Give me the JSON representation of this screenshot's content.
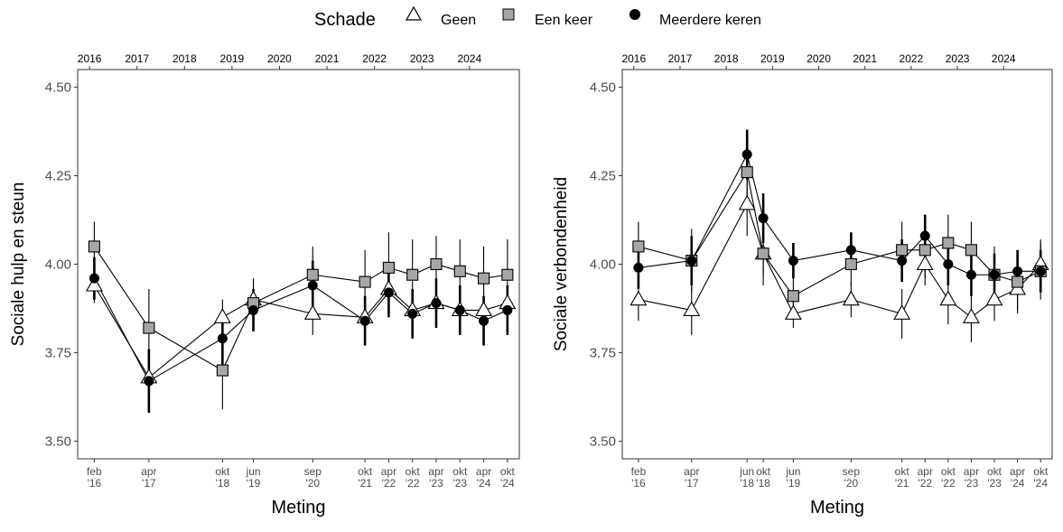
{
  "legend": {
    "title": "Schade",
    "entries": [
      {
        "label": "Geen",
        "marker": "triangle"
      },
      {
        "label": "Een keer",
        "marker": "square"
      },
      {
        "label": "Meerdere keren",
        "marker": "circle"
      }
    ]
  },
  "colors": {
    "geen_fill": "#ffffff",
    "een_keer_fill": "#a6a6a6",
    "meerdere_fill": "#000000",
    "line": "#000000",
    "axis_text": "#4d4d4d"
  },
  "chart_data": [
    {
      "type": "line",
      "xlabel": "Meting",
      "ylabel": "Sociale hulp en steun",
      "ylim": [
        3.45,
        4.55
      ],
      "yticks": [
        "3.50",
        "3.75",
        "4.00",
        "4.25",
        "4.50"
      ],
      "xlim": [
        2015.75,
        2025.05
      ],
      "top_axis_years": [
        "2016",
        "2017",
        "2018",
        "2019",
        "2020",
        "2021",
        "2022",
        "2023",
        "2024"
      ],
      "bottom_ticks": [
        {
          "x": 2016.1,
          "label": [
            "feb",
            "'16"
          ]
        },
        {
          "x": 2017.25,
          "label": [
            "apr",
            "'17"
          ]
        },
        {
          "x": 2018.8,
          "label": [
            "okt",
            "'18"
          ]
        },
        {
          "x": 2019.45,
          "label": [
            "jun",
            "'19"
          ]
        },
        {
          "x": 2020.7,
          "label": [
            "sep",
            "'20"
          ]
        },
        {
          "x": 2021.8,
          "label": [
            "okt",
            "'21"
          ]
        },
        {
          "x": 2022.3,
          "label": [
            "apr",
            "'22"
          ]
        },
        {
          "x": 2022.8,
          "label": [
            "okt",
            "'22"
          ]
        },
        {
          "x": 2023.3,
          "label": [
            "apr",
            "'23"
          ]
        },
        {
          "x": 2023.8,
          "label": [
            "okt",
            "'23"
          ]
        },
        {
          "x": 2024.3,
          "label": [
            "apr",
            "'24"
          ]
        },
        {
          "x": 2024.8,
          "label": [
            "okt",
            "'24"
          ]
        }
      ],
      "series": [
        {
          "name": "Geen",
          "marker": "triangle",
          "x": [
            2016.1,
            2017.25,
            2018.8,
            2019.45,
            2020.7,
            2021.8,
            2022.3,
            2022.8,
            2023.3,
            2023.8,
            2024.3,
            2024.8
          ],
          "y": [
            3.94,
            3.68,
            3.85,
            3.9,
            3.86,
            3.85,
            3.93,
            3.87,
            3.89,
            3.87,
            3.87,
            3.89
          ],
          "lo": [
            3.89,
            3.63,
            3.8,
            3.85,
            3.8,
            3.8,
            3.88,
            3.82,
            3.84,
            3.82,
            3.82,
            3.84
          ],
          "hi": [
            3.99,
            3.73,
            3.9,
            3.95,
            3.92,
            3.9,
            3.98,
            3.92,
            3.94,
            3.92,
            3.92,
            3.94
          ]
        },
        {
          "name": "Een keer",
          "marker": "square",
          "x": [
            2016.1,
            2017.25,
            2018.8,
            2019.45,
            2020.7,
            2021.8,
            2022.3,
            2022.8,
            2023.3,
            2023.8,
            2024.3,
            2024.8
          ],
          "y": [
            4.05,
            3.82,
            3.7,
            3.89,
            3.97,
            3.95,
            3.99,
            3.97,
            4.0,
            3.98,
            3.96,
            3.97
          ],
          "lo": [
            3.98,
            3.72,
            3.59,
            3.82,
            3.89,
            3.86,
            3.9,
            3.88,
            3.92,
            3.89,
            3.87,
            3.88
          ],
          "hi": [
            4.12,
            3.93,
            3.81,
            3.96,
            4.05,
            4.04,
            4.09,
            4.07,
            4.08,
            4.07,
            4.05,
            4.07
          ]
        },
        {
          "name": "Meerdere keren",
          "marker": "circle",
          "x": [
            2016.1,
            2017.25,
            2018.8,
            2019.45,
            2020.7,
            2021.8,
            2022.3,
            2022.8,
            2023.3,
            2023.8,
            2024.3,
            2024.8
          ],
          "y": [
            3.96,
            3.67,
            3.79,
            3.87,
            3.94,
            3.84,
            3.92,
            3.86,
            3.89,
            3.87,
            3.84,
            3.87
          ],
          "lo": [
            3.9,
            3.58,
            3.71,
            3.81,
            3.87,
            3.77,
            3.85,
            3.79,
            3.82,
            3.8,
            3.77,
            3.8
          ],
          "hi": [
            4.02,
            3.76,
            3.87,
            3.93,
            4.01,
            3.91,
            3.99,
            3.93,
            3.96,
            3.94,
            3.91,
            3.94
          ]
        }
      ]
    },
    {
      "type": "line",
      "xlabel": "Meting",
      "ylabel": "Sociale verbondenheid",
      "ylim": [
        3.45,
        4.55
      ],
      "yticks": [
        "3.50",
        "3.75",
        "4.00",
        "4.25",
        "4.50"
      ],
      "xlim": [
        2015.75,
        2025.05
      ],
      "top_axis_years": [
        "2016",
        "2017",
        "2018",
        "2019",
        "2020",
        "2021",
        "2022",
        "2023",
        "2024"
      ],
      "bottom_ticks": [
        {
          "x": 2016.1,
          "label": [
            "feb",
            "'16"
          ]
        },
        {
          "x": 2017.25,
          "label": [
            "apr",
            "'17"
          ]
        },
        {
          "x": 2018.45,
          "label": [
            "jun",
            "'18"
          ]
        },
        {
          "x": 2018.8,
          "label": [
            "okt",
            "'18"
          ]
        },
        {
          "x": 2019.45,
          "label": [
            "jun",
            "'19"
          ]
        },
        {
          "x": 2020.7,
          "label": [
            "sep",
            "'20"
          ]
        },
        {
          "x": 2021.8,
          "label": [
            "okt",
            "'21"
          ]
        },
        {
          "x": 2022.3,
          "label": [
            "apr",
            "'22"
          ]
        },
        {
          "x": 2022.8,
          "label": [
            "okt",
            "'22"
          ]
        },
        {
          "x": 2023.3,
          "label": [
            "apr",
            "'23"
          ]
        },
        {
          "x": 2023.8,
          "label": [
            "okt",
            "'23"
          ]
        },
        {
          "x": 2024.3,
          "label": [
            "apr",
            "'24"
          ]
        },
        {
          "x": 2024.8,
          "label": [
            "okt",
            "'24"
          ]
        }
      ],
      "series": [
        {
          "name": "Geen",
          "marker": "triangle",
          "x": [
            2016.1,
            2017.25,
            2018.45,
            2018.8,
            2019.45,
            2020.7,
            2021.8,
            2022.3,
            2022.8,
            2023.3,
            2023.8,
            2024.3,
            2024.8
          ],
          "y": [
            3.9,
            3.87,
            4.17,
            4.03,
            3.86,
            3.9,
            3.86,
            4.0,
            3.9,
            3.85,
            3.9,
            3.93,
            4.0
          ],
          "lo": [
            3.84,
            3.8,
            4.08,
            3.97,
            3.82,
            3.85,
            3.79,
            3.94,
            3.83,
            3.78,
            3.84,
            3.86,
            3.93
          ],
          "hi": [
            3.96,
            3.94,
            4.26,
            4.09,
            3.9,
            3.95,
            3.93,
            4.06,
            3.97,
            3.92,
            3.96,
            4.0,
            4.07
          ]
        },
        {
          "name": "Een keer",
          "marker": "square",
          "x": [
            2016.1,
            2017.25,
            2018.45,
            2018.8,
            2019.45,
            2020.7,
            2021.8,
            2022.3,
            2022.8,
            2023.3,
            2023.8,
            2024.3,
            2024.8
          ],
          "y": [
            4.05,
            4.01,
            4.26,
            4.03,
            3.91,
            4.0,
            4.04,
            4.04,
            4.06,
            4.04,
            3.97,
            3.95,
            3.98
          ],
          "lo": [
            3.98,
            3.92,
            4.18,
            3.94,
            3.85,
            3.94,
            3.96,
            3.96,
            3.98,
            3.96,
            3.89,
            3.87,
            3.9
          ],
          "hi": [
            4.12,
            4.1,
            4.34,
            4.12,
            3.97,
            4.06,
            4.12,
            4.12,
            4.14,
            4.12,
            4.05,
            4.03,
            4.06
          ]
        },
        {
          "name": "Meerdere keren",
          "marker": "circle",
          "x": [
            2016.1,
            2017.25,
            2018.45,
            2018.8,
            2019.45,
            2020.7,
            2021.8,
            2022.3,
            2022.8,
            2023.3,
            2023.8,
            2024.3,
            2024.8
          ],
          "y": [
            3.99,
            4.01,
            4.31,
            4.13,
            4.01,
            4.04,
            4.01,
            4.08,
            4.0,
            3.97,
            3.97,
            3.98,
            3.98
          ],
          "lo": [
            3.93,
            3.94,
            4.24,
            4.06,
            3.96,
            3.99,
            3.95,
            4.02,
            3.94,
            3.91,
            3.91,
            3.92,
            3.92
          ],
          "hi": [
            4.05,
            4.08,
            4.38,
            4.2,
            4.06,
            4.09,
            4.07,
            4.14,
            4.06,
            4.03,
            4.03,
            4.04,
            4.04
          ]
        }
      ]
    }
  ]
}
